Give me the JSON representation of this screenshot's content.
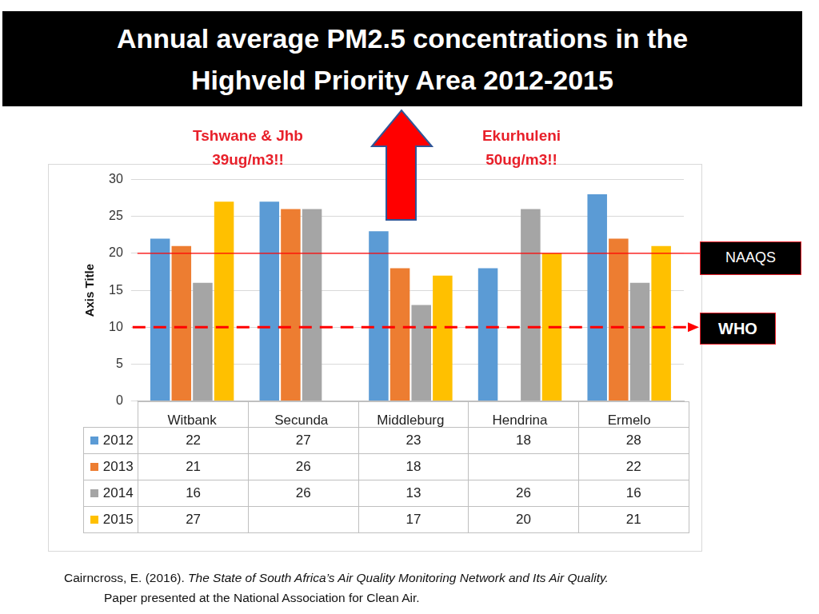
{
  "chart_data": {
    "type": "bar",
    "title": "Annual average PM2.5 concentrations in the Highveld Priority Area 2012-2015",
    "y_label": "Axis Title",
    "categories": [
      "Witbank",
      "Secunda",
      "Middleburg",
      "Hendrina",
      "Ermelo"
    ],
    "series": [
      {
        "name": "2012",
        "color": "#5b9bd5",
        "values": [
          22,
          27,
          23,
          18,
          28
        ]
      },
      {
        "name": "2013",
        "color": "#ed7d31",
        "values": [
          21,
          26,
          18,
          null,
          22
        ]
      },
      {
        "name": "2014",
        "color": "#a5a5a5",
        "values": [
          16,
          26,
          13,
          26,
          16
        ]
      },
      {
        "name": "2015",
        "color": "#ffc000",
        "values": [
          27,
          null,
          17,
          20,
          21
        ]
      }
    ],
    "ylim": [
      0,
      30
    ],
    "yticks": [
      0,
      5,
      10,
      15,
      20,
      25,
      30
    ],
    "grid": true,
    "reference_lines": [
      {
        "label": "NAAQS",
        "value": 20,
        "color": "#ff0000",
        "line_style": "solid"
      },
      {
        "label": "WHO",
        "value": 10,
        "color": "#ff0000",
        "line_style": "dashed"
      }
    ],
    "annotations": [
      {
        "lines": [
          "Tshwane & Jhb",
          "39ug/m3!!"
        ]
      },
      {
        "lines": [
          "Ekurhuleni",
          "50ug/m3!!"
        ]
      }
    ]
  },
  "source": {
    "author": "Cairncross, E. (2016).",
    "work": "The State of South Africa’s Air Quality Monitoring Network and Its Air Quality.",
    "note": "Paper presented at the National Association for Clean Air."
  }
}
